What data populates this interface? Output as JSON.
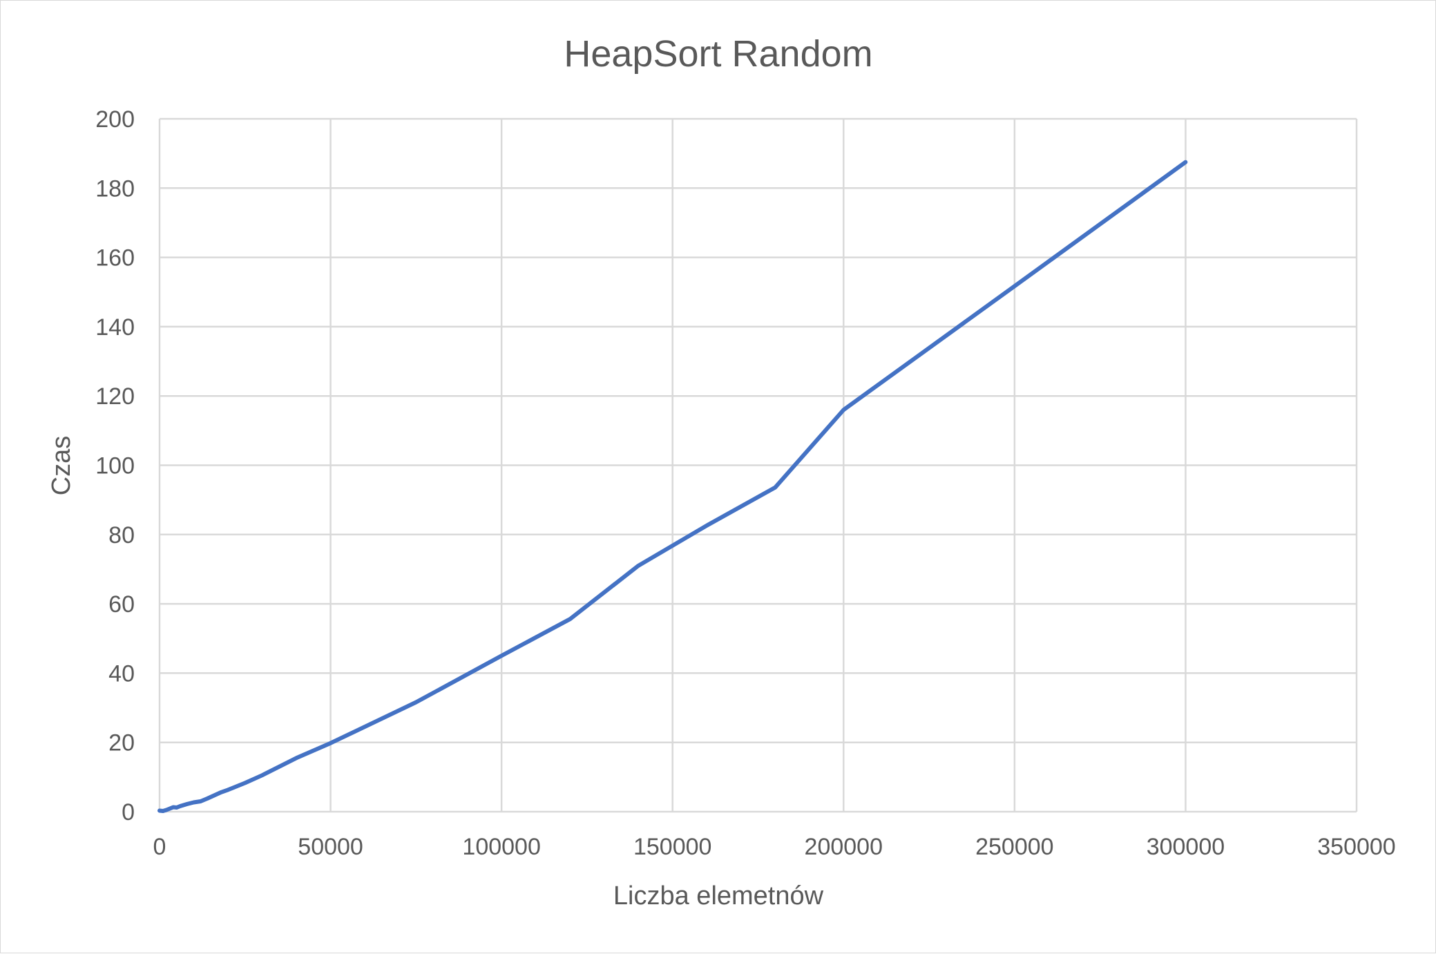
{
  "chart_data": {
    "type": "line",
    "title": "HeapSort Random",
    "xlabel": "Liczba elemetnów",
    "ylabel": "Czas",
    "xlim": [
      0,
      350000
    ],
    "ylim": [
      0,
      200
    ],
    "x_ticks": [
      "0",
      "50000",
      "100000",
      "150000",
      "200000",
      "250000",
      "300000",
      "350000"
    ],
    "y_ticks": [
      "0",
      "20",
      "40",
      "60",
      "80",
      "100",
      "120",
      "140",
      "160",
      "180",
      "200"
    ],
    "grid": true,
    "legend": "none",
    "colors": {
      "series": "#4472c4",
      "grid": "#d9d9d9",
      "text": "#595959"
    },
    "series": [
      {
        "x": [
          0,
          1000,
          2000,
          3000,
          4000,
          5000,
          6000,
          8000,
          10000,
          12000,
          14000,
          16000,
          18000,
          20000,
          25000,
          30000,
          40000,
          50000,
          75000,
          100000,
          120000,
          140000,
          160000,
          180000,
          200000,
          250000,
          300000
        ],
        "y": [
          0.3,
          0.2,
          0.5,
          0.9,
          1.3,
          1.2,
          1.6,
          2.2,
          2.7,
          3.0,
          3.8,
          4.7,
          5.6,
          6.3,
          8.3,
          10.5,
          15.5,
          19.8,
          31.6,
          45.0,
          55.6,
          71.0,
          82.6,
          93.6,
          116.0,
          151.7,
          187.5
        ]
      }
    ]
  }
}
